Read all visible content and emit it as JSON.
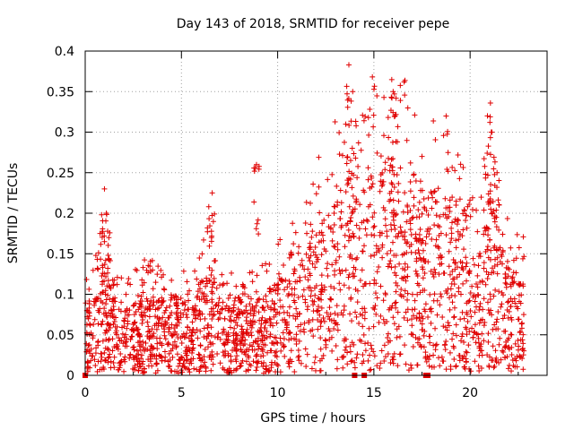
{
  "chart_data": {
    "type": "scatter",
    "title": "Day 143 of 2018, SRMTID for receiver pepe",
    "xlabel": "GPS time / hours",
    "ylabel": "SRMTID / TECUs",
    "xlim": [
      0,
      24
    ],
    "ylim": [
      0,
      0.4
    ],
    "xticks": [
      0,
      5,
      10,
      15,
      20
    ],
    "xtick_labels": [
      "0",
      "5",
      "10",
      "15",
      "20"
    ],
    "yticks": [
      0,
      0.05,
      0.1,
      0.15,
      0.2,
      0.25,
      0.3,
      0.35,
      0.4
    ],
    "ytick_labels": [
      "0",
      "0.05",
      "0.1",
      "0.15",
      "0.2",
      "0.25",
      "0.3",
      "0.35",
      "0.4"
    ],
    "grid": true,
    "marker": "plus",
    "color": "#e00000",
    "data_range": [
      0.0,
      22.8
    ],
    "trend": [
      [
        0.0,
        0.04
      ],
      [
        0.5,
        0.05
      ],
      [
        1.0,
        0.07
      ],
      [
        1.5,
        0.05
      ],
      [
        2.0,
        0.04
      ],
      [
        3.0,
        0.05
      ],
      [
        4.0,
        0.05
      ],
      [
        5.0,
        0.05
      ],
      [
        5.5,
        0.04
      ],
      [
        6.0,
        0.06
      ],
      [
        6.5,
        0.07
      ],
      [
        7.0,
        0.05
      ],
      [
        8.0,
        0.04
      ],
      [
        9.0,
        0.05
      ],
      [
        10.0,
        0.06
      ],
      [
        11.0,
        0.07
      ],
      [
        12.0,
        0.09
      ],
      [
        13.0,
        0.11
      ],
      [
        13.7,
        0.14
      ],
      [
        14.0,
        0.11
      ],
      [
        15.0,
        0.13
      ],
      [
        16.0,
        0.14
      ],
      [
        17.0,
        0.12
      ],
      [
        17.6,
        0.08
      ],
      [
        18.0,
        0.12
      ],
      [
        19.0,
        0.11
      ],
      [
        20.0,
        0.08
      ],
      [
        20.5,
        0.07
      ],
      [
        21.0,
        0.12
      ],
      [
        22.0,
        0.07
      ],
      [
        22.8,
        0.06
      ]
    ],
    "spikes": [
      {
        "x": 1.0,
        "y": 0.23
      },
      {
        "x": 1.1,
        "y": 0.2
      },
      {
        "x": 6.6,
        "y": 0.225
      },
      {
        "x": 8.9,
        "y": 0.26
      },
      {
        "x": 13.7,
        "y": 0.383
      },
      {
        "x": 13.9,
        "y": 0.35
      },
      {
        "x": 16.0,
        "y": 0.35
      },
      {
        "x": 16.1,
        "y": 0.32
      },
      {
        "x": 17.5,
        "y": 0.27
      },
      {
        "x": 20.9,
        "y": 0.32
      },
      {
        "x": 21.1,
        "y": 0.3
      },
      {
        "x": 21.4,
        "y": 0.25
      }
    ],
    "zero_markers": [
      0.0,
      14.0,
      14.5,
      17.7,
      17.8
    ]
  }
}
